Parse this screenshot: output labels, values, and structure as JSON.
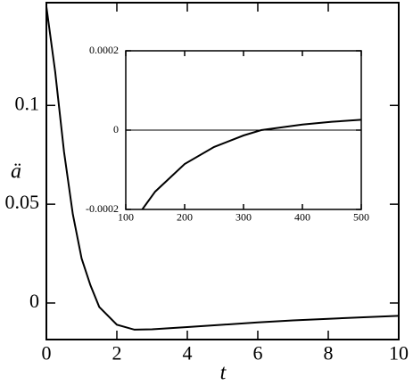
{
  "chart_data": [
    {
      "type": "line",
      "x_label": "t",
      "y_label": "ä",
      "x": [
        0,
        0.25,
        0.5,
        0.75,
        1,
        1.25,
        1.5,
        2,
        2.5,
        3,
        4,
        5,
        6,
        7,
        8,
        9,
        10
      ],
      "series": [
        {
          "color": "#000000",
          "values": [
            0.15,
            0.117,
            0.0766,
            0.045,
            0.0225,
            0.009,
            -0.002,
            -0.011,
            -0.0135,
            -0.0133,
            -0.0122,
            -0.011,
            -0.0098,
            -0.0088,
            -0.008,
            -0.0072,
            -0.0065
          ]
        }
      ],
      "xlim": [
        0,
        10
      ],
      "ylim": [
        -0.0185,
        0.152
      ],
      "xticks": [
        0,
        2,
        4,
        6,
        8,
        10
      ],
      "yticks": [
        0,
        0.05,
        0.1
      ],
      "zero_line": false
    },
    {
      "type": "line",
      "x": [
        128,
        150,
        200,
        250,
        300,
        330,
        400,
        450,
        500
      ],
      "series": [
        {
          "color": "#000000",
          "values": [
            -0.0002,
            -0.000155,
            -8.55e-05,
            -4.25e-05,
            -1.35e-05,
            0,
            1.4e-05,
            2.1e-05,
            2.6e-05
          ]
        }
      ],
      "xlim": [
        100,
        500
      ],
      "ylim": [
        -0.0002,
        0.0002
      ],
      "xticks": [
        100,
        200,
        300,
        400,
        500
      ],
      "yticks": [
        -0.0002,
        0,
        0.0002
      ],
      "zero_line": true
    }
  ]
}
